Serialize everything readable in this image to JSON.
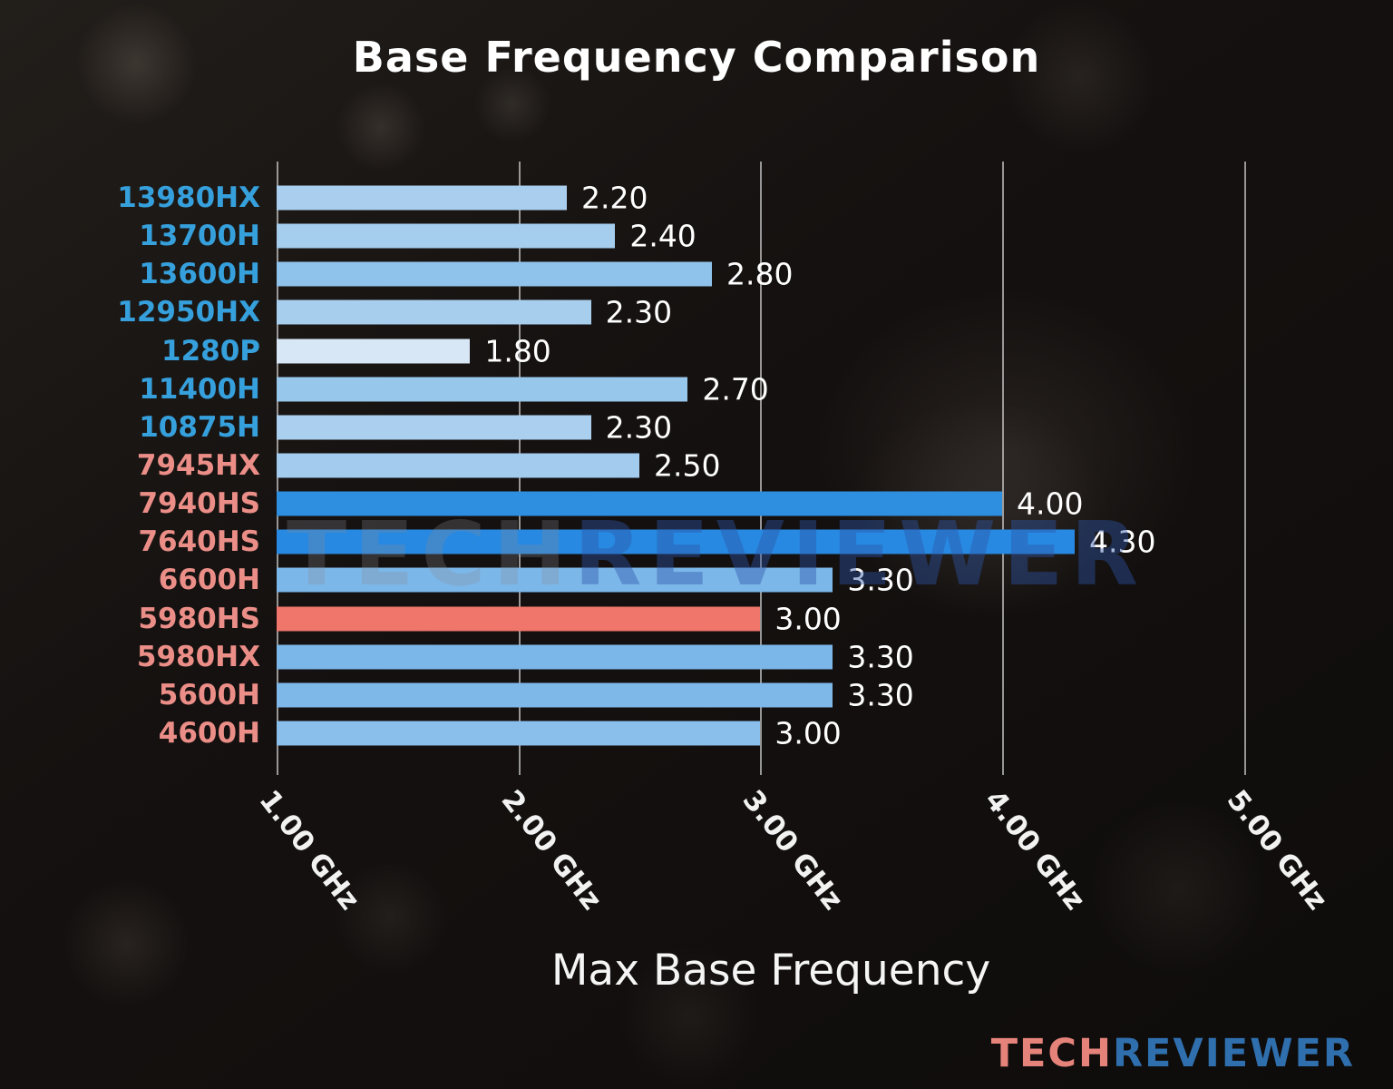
{
  "chart_data": {
    "type": "bar",
    "orientation": "horizontal",
    "title": "Base Frequency Comparison",
    "xlabel": "Max Base Frequency",
    "unit": "GHz",
    "xlim": [
      1.0,
      5.5
    ],
    "grid": true,
    "x_ticks": [
      {
        "value": 1.0,
        "label": "1.00 GHz"
      },
      {
        "value": 2.0,
        "label": "2.00 GHz"
      },
      {
        "value": 3.0,
        "label": "3.00 GHz"
      },
      {
        "value": 4.0,
        "label": "4.00 GHz"
      },
      {
        "value": 5.0,
        "label": "5.00 GHz"
      }
    ],
    "categories": [
      "13980HX",
      "13700H",
      "13600H",
      "12950HX",
      "1280P",
      "11400H",
      "10875H",
      "7945HX",
      "7940HS",
      "7640HS",
      "6600H",
      "5980HS",
      "5980HX",
      "5600H",
      "4600H"
    ],
    "values": [
      2.2,
      2.4,
      2.8,
      2.3,
      1.8,
      2.7,
      2.3,
      2.5,
      4.0,
      4.3,
      3.3,
      3.0,
      3.3,
      3.3,
      3.0
    ],
    "value_labels": [
      "2.20",
      "2.40",
      "2.80",
      "2.30",
      "1.80",
      "2.70",
      "2.30",
      "2.50",
      "4.00",
      "4.30",
      "3.30",
      "3.00",
      "3.30",
      "3.30",
      "3.00"
    ],
    "bar_colors": [
      "#aacfee",
      "#a5cdee",
      "#90c3ec",
      "#a8ceee",
      "#d8e7f6",
      "#98c7ec",
      "#abd0ef",
      "#a2cbee",
      "#2e8fe0",
      "#2789e1",
      "#7cb7e9",
      "#f0756a",
      "#7cb7e9",
      "#7eb8e9",
      "#8abeeb"
    ],
    "label_colors": [
      "#36a0dc",
      "#36a0dc",
      "#36a0dc",
      "#36a0dc",
      "#36a0dc",
      "#36a0dc",
      "#36a0dc",
      "#ec8e88",
      "#ec8e88",
      "#ec8e88",
      "#ec8e88",
      "#ec8e88",
      "#ec8e88",
      "#ec8e88",
      "#ec8e88"
    ],
    "grid_color": "#d0d0d0",
    "highlight_category": "5980HS"
  },
  "watermark": {
    "part1": "TECH",
    "part2": "REVIEWER"
  },
  "logo": {
    "part1": "TECH",
    "part2": "REVIEWER"
  },
  "colors": {
    "intel_label": "#36a0dc",
    "amd_label": "#ec8e88",
    "highlight_bar": "#f0756a",
    "strong_bar": "#2e8fe0",
    "light_bar": "#aacfee",
    "logo_tech": "#e5837a",
    "logo_reviewer": "#2f6fae"
  }
}
